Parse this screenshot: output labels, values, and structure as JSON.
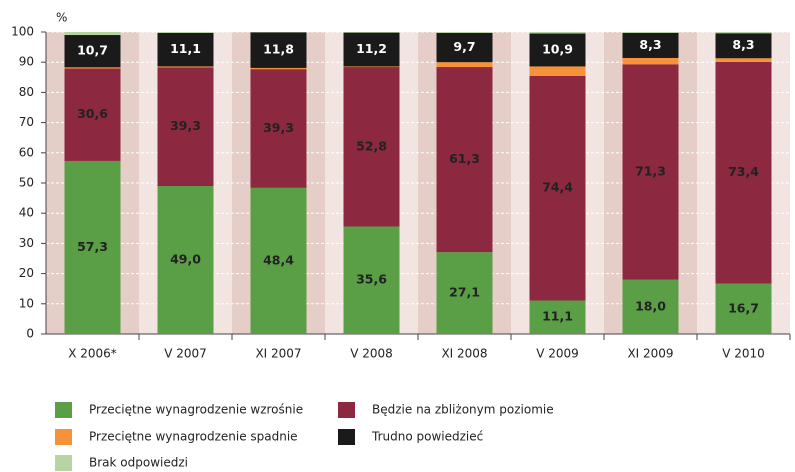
{
  "chart_data": {
    "type": "stacked_bar",
    "y_label": "%",
    "categories": [
      "X 2006*",
      "V 2007",
      "XI 2007",
      "V 2008",
      "XI 2008",
      "V 2009",
      "XI 2009",
      "V 2010"
    ],
    "series": [
      {
        "name": "Przeciętne wynagrodzenie wzrośnie",
        "color": "#5a9e46",
        "label_color": "#222222",
        "values": [
          57.3,
          49.0,
          48.4,
          35.6,
          27.1,
          11.1,
          18.0,
          16.7
        ],
        "value_labels": [
          "57,3",
          "49,0",
          "48,4",
          "35,6",
          "27,1",
          "11,1",
          "18,0",
          "16,7"
        ]
      },
      {
        "name": "Będzie na zbliżonym poziomie",
        "color": "#8c2840",
        "label_color": "#222222",
        "values": [
          30.6,
          39.3,
          39.3,
          52.8,
          61.3,
          74.4,
          71.3,
          73.4
        ],
        "value_labels": [
          "30,6",
          "39,3",
          "39,3",
          "52,8",
          "61,3",
          "74,4",
          "71,3",
          "73,4"
        ]
      },
      {
        "name": "Przeciętne wynagrodzenie spadnie",
        "color": "#f7923a",
        "values": [
          0.4,
          0.3,
          0.4,
          0.2,
          1.6,
          3.1,
          2.1,
          1.2
        ]
      },
      {
        "name": "Trudno powiedzieć",
        "color": "#1a1a1a",
        "label_color": "#ffffff",
        "values": [
          10.7,
          11.1,
          11.8,
          11.2,
          9.7,
          10.9,
          8.3,
          8.3
        ],
        "value_labels": [
          "10,7",
          "11,1",
          "11,8",
          "11,2",
          "9,7",
          "10,9",
          "8,3",
          "8,3"
        ]
      },
      {
        "name": "Brak odpowiedzi",
        "color": "#b5d6a0",
        "values": [
          1.0,
          0.3,
          0.1,
          0.2,
          0.3,
          0.5,
          0.3,
          0.4
        ]
      }
    ],
    "ylim": [
      0,
      100
    ],
    "yticks": [
      0,
      10,
      20,
      30,
      40,
      50,
      60,
      70,
      80,
      90,
      100
    ]
  }
}
